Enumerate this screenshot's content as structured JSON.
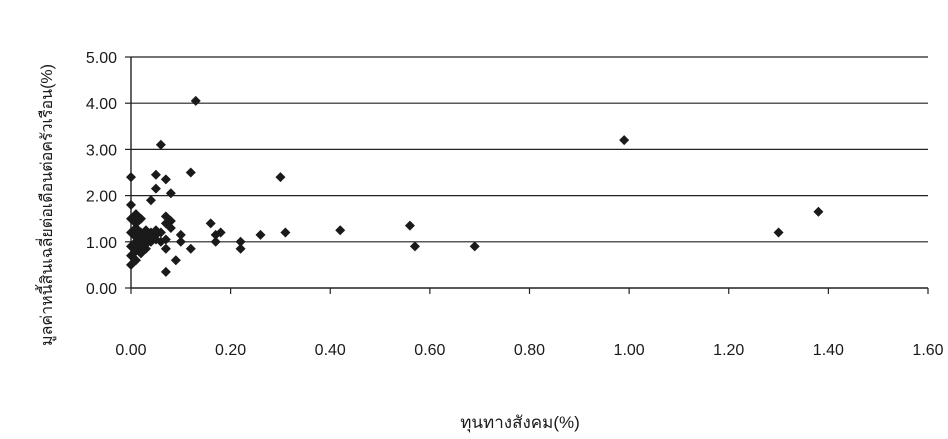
{
  "chart_data": {
    "type": "scatter",
    "title": "",
    "xlabel": "ทุนทางสังคม(%)",
    "ylabel": "มูลค่าหนี้สินเฉลี่ยต่อเดือนต่อครัวเรือน(%)",
    "xlim": [
      0,
      1.6
    ],
    "ylim": [
      0,
      5
    ],
    "xticks": [
      "0.00",
      "0.20",
      "0.40",
      "0.60",
      "0.80",
      "1.00",
      "1.20",
      "1.40",
      "1.60"
    ],
    "yticks": [
      "0.00",
      "1.00",
      "2.00",
      "3.00",
      "4.00",
      "5.00"
    ],
    "grid": "horizontal",
    "legend": "none",
    "marker": "diamond",
    "colors": {
      "marker": "#1a1a1a",
      "grid": "#222222",
      "axis": "#222222"
    },
    "points": [
      [
        0.0,
        0.5
      ],
      [
        0.0,
        0.7
      ],
      [
        0.0,
        0.9
      ],
      [
        0.0,
        1.2
      ],
      [
        0.0,
        1.5
      ],
      [
        0.0,
        1.8
      ],
      [
        0.0,
        2.4
      ],
      [
        0.01,
        0.6
      ],
      [
        0.01,
        0.8
      ],
      [
        0.01,
        1.0
      ],
      [
        0.01,
        1.1
      ],
      [
        0.01,
        1.3
      ],
      [
        0.01,
        1.6
      ],
      [
        0.01,
        1.4
      ],
      [
        0.02,
        0.9
      ],
      [
        0.02,
        1.0
      ],
      [
        0.02,
        1.2
      ],
      [
        0.02,
        1.5
      ],
      [
        0.02,
        0.75
      ],
      [
        0.03,
        0.95
      ],
      [
        0.03,
        1.1
      ],
      [
        0.03,
        1.25
      ],
      [
        0.03,
        0.85
      ],
      [
        0.04,
        1.0
      ],
      [
        0.04,
        1.1
      ],
      [
        0.04,
        1.2
      ],
      [
        0.04,
        1.9
      ],
      [
        0.05,
        1.05
      ],
      [
        0.05,
        1.15
      ],
      [
        0.05,
        2.15
      ],
      [
        0.05,
        2.45
      ],
      [
        0.05,
        1.25
      ],
      [
        0.06,
        3.1
      ],
      [
        0.06,
        1.0
      ],
      [
        0.06,
        1.2
      ],
      [
        0.07,
        0.35
      ],
      [
        0.07,
        0.85
      ],
      [
        0.07,
        1.05
      ],
      [
        0.07,
        1.4
      ],
      [
        0.07,
        1.55
      ],
      [
        0.07,
        2.35
      ],
      [
        0.08,
        1.3
      ],
      [
        0.08,
        1.45
      ],
      [
        0.08,
        2.05
      ],
      [
        0.09,
        0.6
      ],
      [
        0.1,
        1.0
      ],
      [
        0.1,
        1.15
      ],
      [
        0.12,
        0.85
      ],
      [
        0.12,
        2.5
      ],
      [
        0.13,
        4.05
      ],
      [
        0.16,
        1.4
      ],
      [
        0.17,
        1.0
      ],
      [
        0.17,
        1.15
      ],
      [
        0.18,
        1.2
      ],
      [
        0.22,
        0.85
      ],
      [
        0.22,
        1.0
      ],
      [
        0.26,
        1.15
      ],
      [
        0.3,
        2.4
      ],
      [
        0.31,
        1.2
      ],
      [
        0.42,
        1.25
      ],
      [
        0.56,
        1.35
      ],
      [
        0.57,
        0.9
      ],
      [
        0.69,
        0.9
      ],
      [
        0.99,
        3.2
      ],
      [
        1.3,
        1.2
      ],
      [
        1.38,
        1.65
      ]
    ]
  }
}
